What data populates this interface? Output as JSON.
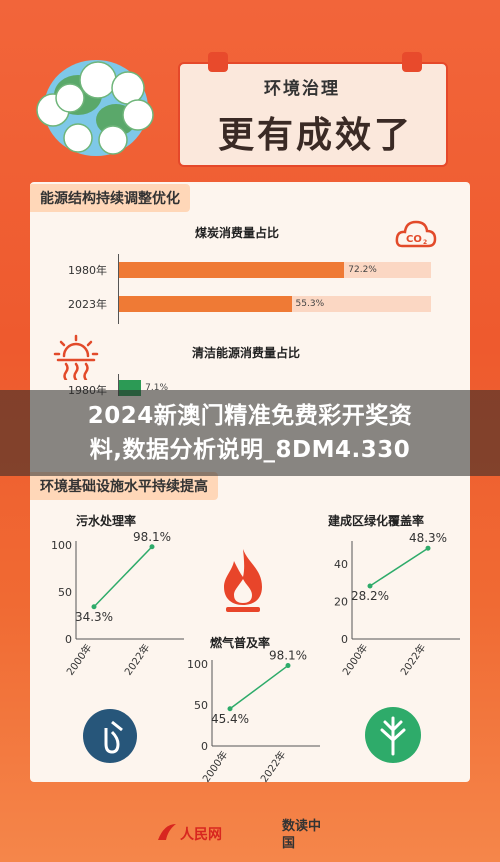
{
  "header": {
    "title_small": "环境治理",
    "title_big": "更有成效了"
  },
  "section1": {
    "tag": "能源结构持续调整优化",
    "coal": {
      "title": "煤炭消费量占比",
      "icon": "co2-cloud-icon"
    },
    "clean": {
      "title": "清洁能源消费量占比",
      "icon": "sun-heat-icon"
    }
  },
  "section2": {
    "tag": "环境基础设施水平持续提高"
  },
  "banner": {
    "line1": "2024新澳门精准免费彩开奖资",
    "line2": "料,数据分析说明_8DM4.330"
  },
  "logos": {
    "people": "人民网",
    "shudu": "数读中国"
  },
  "colors": {
    "orange_bar": "#ef7a35",
    "green_bar": "#2c9a55",
    "line_green": "#2eab6a"
  },
  "chart_data": [
    {
      "type": "bar",
      "orientation": "horizontal",
      "title": "煤炭消费量占比",
      "categories": [
        "1980年",
        "2023年"
      ],
      "values": [
        72.2,
        55.3
      ],
      "value_labels": [
        "72.2%",
        "55.3%"
      ],
      "xlim": [
        0,
        100
      ]
    },
    {
      "type": "bar",
      "orientation": "horizontal",
      "title": "清洁能源消费量占比",
      "categories": [
        "1980年"
      ],
      "values": [
        7.1
      ],
      "value_labels": [
        "7.1%"
      ],
      "xlim": [
        0,
        100
      ]
    },
    {
      "type": "line",
      "title": "污水处理率",
      "x": [
        "2000年",
        "2022年"
      ],
      "values": [
        34.3,
        98.1
      ],
      "value_labels": [
        "34.3%",
        "98.1%"
      ],
      "yticks": [
        "0",
        "50",
        "100"
      ],
      "ylim": [
        0,
        100
      ]
    },
    {
      "type": "line",
      "title": "燃气普及率",
      "x": [
        "2000年",
        "2022年"
      ],
      "values": [
        45.4,
        98.1
      ],
      "value_labels": [
        "45.4%",
        "98.1%"
      ],
      "yticks": [
        "0",
        "50",
        "100"
      ],
      "ylim": [
        0,
        100
      ]
    },
    {
      "type": "line",
      "title": "建成区绿化覆盖率",
      "x": [
        "2000年",
        "2022年"
      ],
      "values": [
        28.2,
        48.3
      ],
      "value_labels": [
        "28.2%",
        "48.3%"
      ],
      "yticks": [
        "0",
        "20",
        "40"
      ],
      "ylim": [
        0,
        50
      ]
    }
  ]
}
